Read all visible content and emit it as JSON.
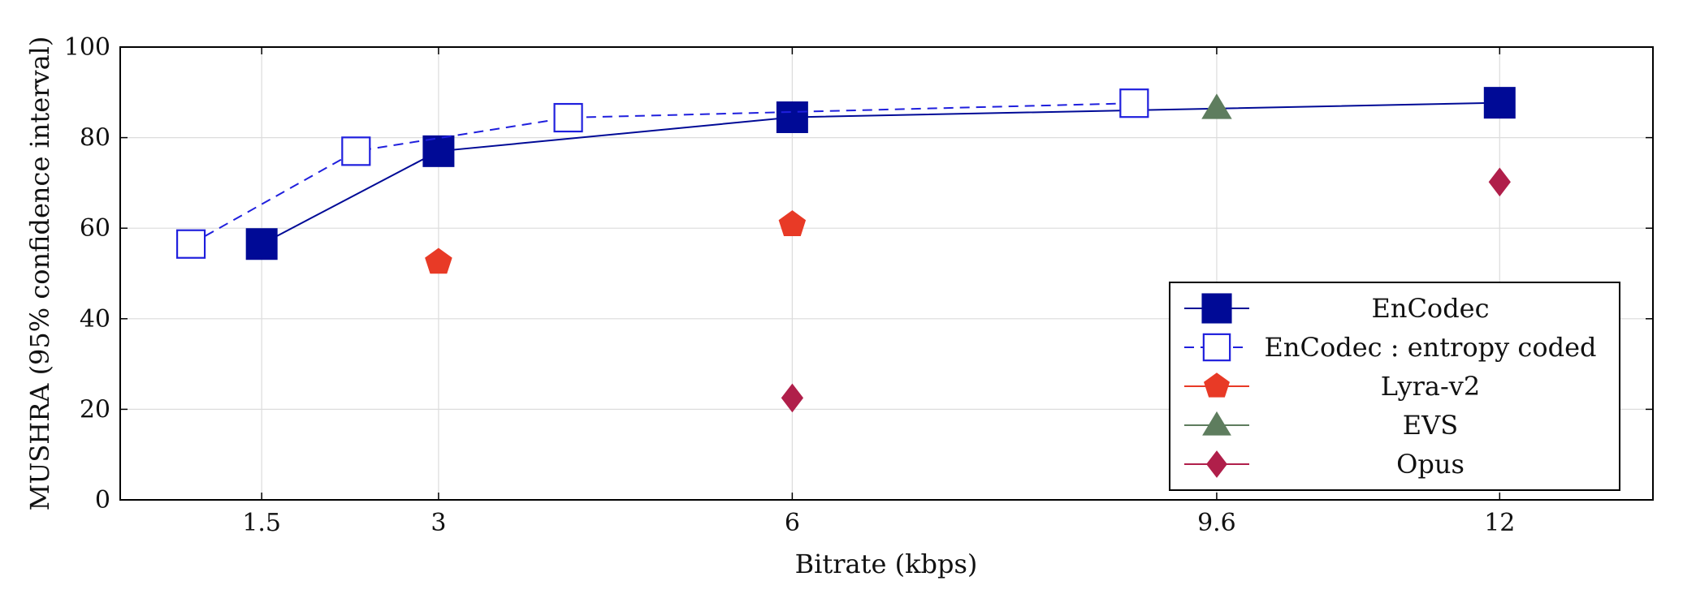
{
  "chart_data": {
    "type": "line",
    "xlabel": "Bitrate (kbps)",
    "ylabel": "MUSHRA (95% confidence interval)",
    "xlim": [
      0.3,
      13.3
    ],
    "ylim": [
      0,
      100
    ],
    "xticks": [
      {
        "value": 1.5,
        "label": "1.5"
      },
      {
        "value": 3,
        "label": "3"
      },
      {
        "value": 6,
        "label": "6"
      },
      {
        "value": 9.6,
        "label": "9.6"
      },
      {
        "value": 12,
        "label": "12"
      }
    ],
    "yticks": [
      0,
      20,
      40,
      60,
      80,
      100
    ],
    "grid": true,
    "legend_position": "bottom-right",
    "series": [
      {
        "name": "EnCodec",
        "marker": "square-filled",
        "line": "solid",
        "color": "#000a96",
        "points": [
          [
            1.5,
            56.5
          ],
          [
            3,
            77
          ],
          [
            6,
            84.5
          ],
          [
            12,
            87.7
          ]
        ]
      },
      {
        "name": "EnCodec : entropy coded",
        "marker": "square-open",
        "line": "dashed",
        "color": "#1f1fdd",
        "points": [
          [
            0.9,
            56.5
          ],
          [
            2.3,
            77
          ],
          [
            4.1,
            84.4
          ],
          [
            8.9,
            87.6
          ]
        ]
      },
      {
        "name": "Lyra-v2",
        "marker": "pentagon",
        "line": "none",
        "color": "#e83a26",
        "points": [
          [
            3,
            52.5
          ],
          [
            6,
            60.8
          ]
        ]
      },
      {
        "name": "EVS",
        "marker": "triangle",
        "line": "none",
        "color": "#5e7d5e",
        "points": [
          [
            9.6,
            86.5
          ]
        ]
      },
      {
        "name": "Opus",
        "marker": "diamond",
        "line": "none",
        "color": "#b01f4a",
        "points": [
          [
            6,
            22.5
          ],
          [
            12,
            70.2
          ]
        ]
      }
    ]
  }
}
